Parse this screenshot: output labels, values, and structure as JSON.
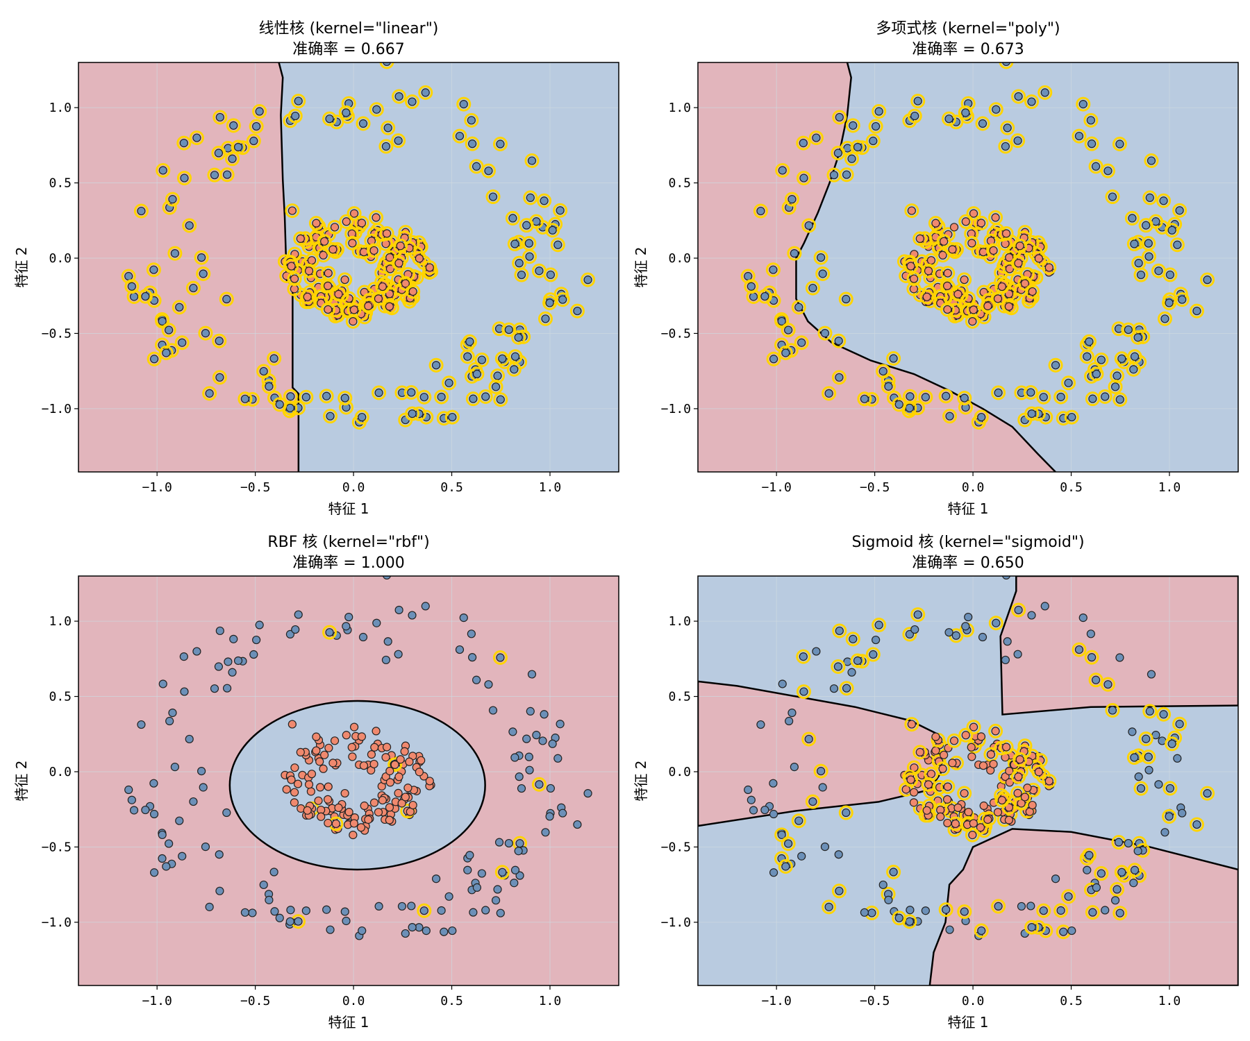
{
  "colors": {
    "region_class0": "#e2b5bc",
    "region_class1": "#b9cbe0",
    "point_class0": "#f0896e",
    "point_class1": "#6c90b8",
    "support_vector_ring": "#ffd400",
    "boundary": "#000000",
    "grid": "#cfd8e0"
  },
  "chart_data": [
    {
      "type": "scatter",
      "title_line1": "线性核 (kernel=\"linear\")",
      "title_line2": "准确率 = 0.667",
      "xlabel": "特征 1",
      "ylabel": "特征 2",
      "xlim": [
        -1.4,
        1.35
      ],
      "ylim": [
        -1.42,
        1.3
      ],
      "xticks": [
        -1.0,
        -0.5,
        0.0,
        0.5,
        1.0
      ],
      "xtick_labels": [
        "−1.0",
        "−0.5",
        "0.0",
        "0.5",
        "1.0"
      ],
      "yticks": [
        -1.0,
        -0.5,
        0.0,
        0.5,
        1.0
      ],
      "ytick_labels": [
        "−1.0",
        "−0.5",
        "0.0",
        "0.5",
        "1.0"
      ],
      "grid": true,
      "boundary": [
        [
          -0.38,
          1.3
        ],
        [
          -0.36,
          1.2
        ],
        [
          -0.37,
          0.95
        ],
        [
          -0.36,
          0.52
        ],
        [
          -0.35,
          0.27
        ],
        [
          -0.34,
          -0.15
        ],
        [
          -0.31,
          -0.18
        ],
        [
          -0.31,
          -0.86
        ],
        [
          -0.28,
          -0.9
        ],
        [
          -0.28,
          -1.42
        ]
      ],
      "class1_side": "right",
      "all_support_vectors": true,
      "sv_class0_idx": [],
      "sv_class1_idx": []
    },
    {
      "type": "scatter",
      "title_line1": "多项式核 (kernel=\"poly\")",
      "title_line2": "准确率 = 0.673",
      "xlabel": "特征 1",
      "ylabel": "特征 2",
      "xlim": [
        -1.4,
        1.35
      ],
      "ylim": [
        -1.42,
        1.3
      ],
      "xticks": [
        -1.0,
        -0.5,
        0.0,
        0.5,
        1.0
      ],
      "xtick_labels": [
        "−1.0",
        "−0.5",
        "0.0",
        "0.5",
        "1.0"
      ],
      "yticks": [
        -1.0,
        -0.5,
        0.0,
        0.5,
        1.0
      ],
      "ytick_labels": [
        "−1.0",
        "−0.5",
        "0.0",
        "0.5",
        "1.0"
      ],
      "grid": true,
      "boundary": [
        [
          -0.64,
          1.3
        ],
        [
          -0.62,
          1.2
        ],
        [
          -0.64,
          0.95
        ],
        [
          -0.68,
          0.7
        ],
        [
          -0.73,
          0.5
        ],
        [
          -0.79,
          0.3
        ],
        [
          -0.86,
          0.1
        ],
        [
          -0.9,
          0.0
        ],
        [
          -0.9,
          -0.27
        ],
        [
          -0.84,
          -0.42
        ],
        [
          -0.72,
          -0.56
        ],
        [
          -0.52,
          -0.68
        ],
        [
          -0.3,
          -0.77
        ],
        [
          -0.12,
          -0.88
        ],
        [
          0.05,
          -1.0
        ],
        [
          0.2,
          -1.12
        ],
        [
          0.33,
          -1.3
        ],
        [
          0.42,
          -1.42
        ]
      ],
      "class1_side": "right",
      "all_support_vectors": false,
      "sv_class0_idx": [
        2,
        3,
        4,
        5,
        7,
        8,
        9,
        10,
        11,
        12,
        14,
        15,
        16,
        17,
        19,
        20,
        21,
        22,
        23,
        24,
        26,
        27,
        28,
        29,
        30,
        32,
        33,
        34,
        35,
        36,
        38,
        39,
        40,
        41,
        42,
        44,
        45,
        46,
        47,
        48,
        50,
        51,
        52,
        53,
        55,
        56,
        57,
        58,
        59,
        60,
        62,
        63,
        64,
        65,
        66,
        68,
        69,
        70,
        71,
        72,
        74,
        75,
        76,
        77,
        79,
        80,
        81,
        82,
        84,
        85,
        86,
        87,
        88,
        90,
        91,
        92,
        93,
        94,
        95,
        96,
        97,
        98,
        99,
        100,
        101,
        102,
        103,
        104,
        105,
        106,
        107,
        108,
        109,
        110,
        111,
        112,
        113,
        114,
        115,
        116,
        117,
        118,
        119,
        120,
        121,
        122,
        123,
        124,
        125,
        126,
        127,
        128,
        129,
        130,
        131,
        132,
        133,
        134,
        135,
        136,
        137,
        138,
        139,
        140,
        141,
        142,
        143,
        144,
        145,
        146,
        147,
        148,
        149,
        150
      ],
      "sv_class1_idx": [
        0,
        1,
        2,
        3,
        4,
        5,
        6,
        7,
        8,
        9,
        10,
        11,
        12,
        13,
        14,
        15,
        16,
        17,
        18,
        19,
        20,
        21,
        22,
        23,
        24,
        25,
        26,
        27,
        28,
        29,
        30,
        31,
        32,
        33,
        34,
        35,
        36,
        37,
        38,
        39,
        40,
        41,
        42,
        43,
        44,
        45,
        46,
        47,
        48,
        49,
        50,
        51,
        52,
        53,
        54,
        55,
        56,
        57,
        58,
        59,
        60,
        61,
        62,
        63,
        64,
        65,
        66,
        67,
        68,
        69,
        70,
        71,
        72,
        73,
        74,
        75,
        76,
        77,
        78,
        79,
        80,
        81,
        82,
        83,
        84,
        85,
        86,
        87,
        88,
        89,
        90,
        91,
        92,
        93,
        94,
        95,
        96,
        97,
        98,
        99,
        100,
        101,
        102,
        103,
        104,
        105,
        106,
        107,
        108,
        109,
        110,
        111,
        112,
        113,
        114,
        115,
        116,
        117,
        118,
        119,
        120,
        121,
        122,
        123,
        124,
        125,
        126,
        127,
        128,
        129,
        130,
        131,
        132,
        133,
        134,
        135,
        136,
        137,
        138,
        139,
        140,
        141,
        142,
        143,
        144,
        145,
        146,
        147,
        148,
        149,
        150
      ]
    },
    {
      "type": "scatter",
      "title_line1": "RBF 核 (kernel=\"rbf\")",
      "title_line2": "准确率 = 1.000",
      "xlabel": "特征 1",
      "ylabel": "特征 2",
      "xlim": [
        -1.4,
        1.35
      ],
      "ylim": [
        -1.42,
        1.3
      ],
      "xticks": [
        -1.0,
        -0.5,
        0.0,
        0.5,
        1.0
      ],
      "xtick_labels": [
        "−1.0",
        "−0.5",
        "0.0",
        "0.5",
        "1.0"
      ],
      "yticks": [
        -1.0,
        -0.5,
        0.0,
        0.5,
        1.0
      ],
      "ytick_labels": [
        "−1.0",
        "−0.5",
        "0.0",
        "0.5",
        "1.0"
      ],
      "grid": true,
      "ellipse": {
        "cx": 0.02,
        "cy": -0.09,
        "rx": 0.65,
        "ry": 0.56
      },
      "class1_side": "outside",
      "all_support_vectors": false,
      "sv_class0_idx": [
        7,
        28,
        61,
        95,
        130
      ],
      "sv_class1_idx": [
        18,
        39,
        55,
        77,
        98,
        121,
        140
      ]
    },
    {
      "type": "scatter",
      "title_line1": "Sigmoid 核 (kernel=\"sigmoid\")",
      "title_line2": "准确率 = 0.650",
      "xlabel": "特征 1",
      "ylabel": "特征 2",
      "xlim": [
        -1.4,
        1.35
      ],
      "ylim": [
        -1.42,
        1.3
      ],
      "xticks": [
        -1.0,
        -0.5,
        0.0,
        0.5,
        1.0
      ],
      "xtick_labels": [
        "−1.0",
        "−0.5",
        "0.0",
        "0.5",
        "1.0"
      ],
      "yticks": [
        -1.0,
        -0.5,
        0.0,
        0.5,
        1.0
      ],
      "ytick_labels": [
        "−1.0",
        "−0.5",
        "0.0",
        "0.5",
        "1.0"
      ],
      "grid": true,
      "red_regions": [
        [
          [
            0.22,
            1.3
          ],
          [
            1.35,
            1.3
          ],
          [
            1.35,
            0.44
          ],
          [
            0.6,
            0.43
          ],
          [
            0.15,
            0.38
          ],
          [
            0.14,
            0.9
          ],
          [
            0.22,
            1.2
          ]
        ],
        [
          [
            -1.4,
            0.6
          ],
          [
            -1.2,
            0.57
          ],
          [
            -0.9,
            0.5
          ],
          [
            -0.6,
            0.43
          ],
          [
            -0.32,
            0.34
          ],
          [
            -0.18,
            0.25
          ],
          [
            -0.16,
            0.0
          ],
          [
            -0.22,
            -0.12
          ],
          [
            -0.48,
            -0.2
          ],
          [
            -0.9,
            -0.26
          ],
          [
            -1.4,
            -0.36
          ]
        ],
        [
          [
            -0.22,
            -1.42
          ],
          [
            1.35,
            -1.42
          ],
          [
            1.35,
            -0.65
          ],
          [
            0.9,
            -0.5
          ],
          [
            0.5,
            -0.4
          ],
          [
            0.2,
            -0.38
          ],
          [
            0.0,
            -0.5
          ],
          [
            -0.05,
            -0.65
          ],
          [
            -0.12,
            -0.75
          ],
          [
            -0.14,
            -1.0
          ],
          [
            -0.2,
            -1.2
          ]
        ]
      ],
      "class1_side": "rest",
      "all_support_vectors": false,
      "sv_class0_idx": [
        1,
        3,
        5,
        7,
        9,
        11,
        13,
        15,
        17,
        19,
        21,
        23,
        25,
        27,
        29,
        31,
        33,
        35,
        37,
        39,
        41,
        43,
        45,
        47,
        49,
        51,
        53,
        55,
        57,
        59,
        61,
        63,
        65,
        67,
        69,
        71,
        73,
        75,
        77,
        79,
        81,
        83,
        85,
        87,
        89,
        91,
        93,
        95,
        97,
        99,
        101,
        103,
        105,
        107,
        109,
        111,
        113,
        115,
        117,
        119,
        121,
        123,
        125,
        127,
        129,
        131,
        133,
        135,
        137,
        139,
        141,
        143,
        145,
        147,
        149
      ],
      "sv_class1_idx": [
        0,
        2,
        4,
        6,
        8,
        10,
        12,
        14,
        16,
        18,
        20,
        22,
        24,
        26,
        28,
        30,
        32,
        34,
        36,
        38,
        40,
        42,
        44,
        46,
        48,
        50,
        52,
        54,
        56,
        58,
        60,
        62,
        64,
        66,
        68,
        70,
        72,
        74,
        76,
        78,
        80,
        82,
        84,
        86,
        88,
        90,
        92,
        94,
        96,
        98,
        100,
        102,
        104,
        106,
        108,
        110,
        112,
        114,
        116,
        118,
        120,
        122,
        124,
        126,
        128,
        130,
        132,
        134,
        136,
        138,
        140,
        142,
        144,
        146,
        148,
        150
      ]
    }
  ]
}
